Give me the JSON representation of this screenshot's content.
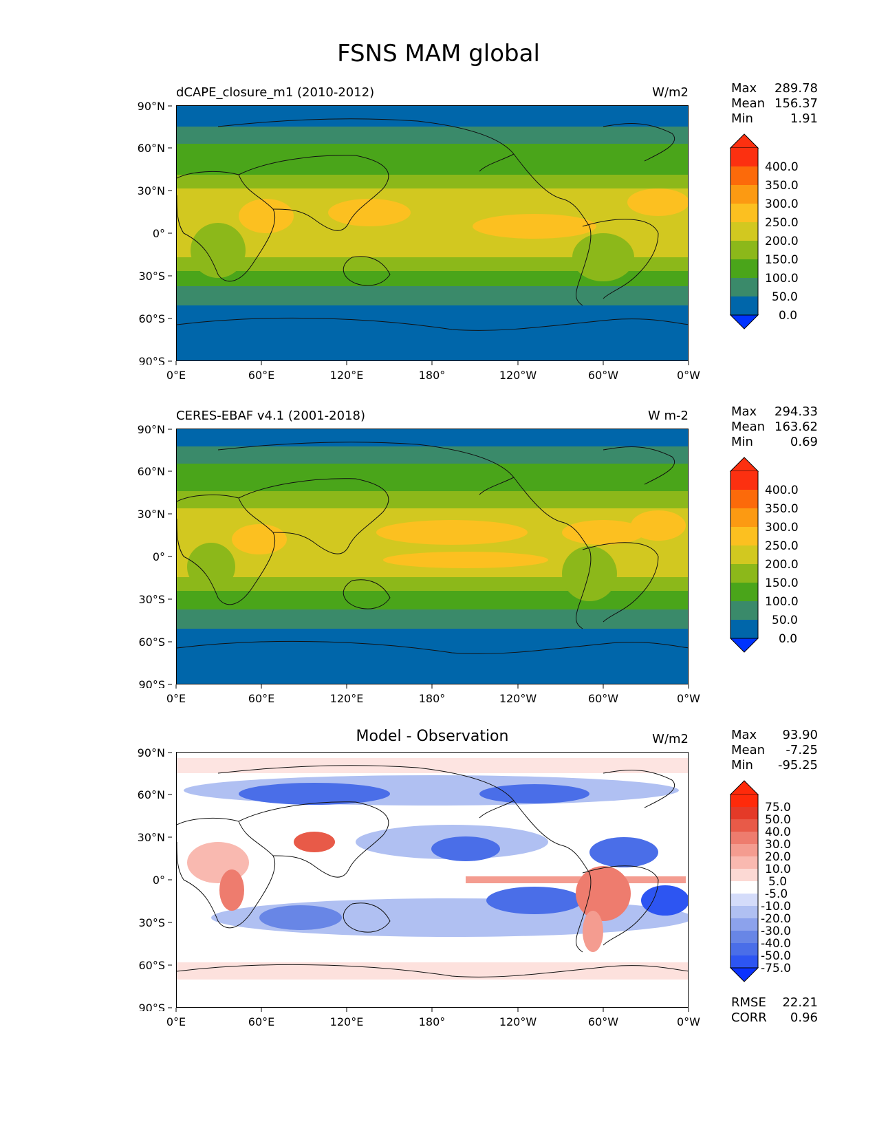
{
  "figure": {
    "title": "FSNS MAM global"
  },
  "axes": {
    "lat_ticks": [
      "90°N",
      "60°N",
      "30°N",
      "0°",
      "30°S",
      "60°S",
      "90°S"
    ],
    "lon_ticks": [
      "0°E",
      "60°E",
      "120°E",
      "180°",
      "120°W",
      "60°W",
      "0°W"
    ]
  },
  "colors": {
    "abs_levels": [
      "#0033ff",
      "#0066aa",
      "#3a8a6a",
      "#4aa51a",
      "#8cb81a",
      "#d2c820",
      "#fcc020",
      "#fc9a12",
      "#fc6a0a",
      "#fc3010"
    ],
    "diff_levels": [
      "#0a32ff",
      "#2d55f2",
      "#4a6ee8",
      "#6886e6",
      "#8ca2ec",
      "#b0c0f2",
      "#d4dcfa",
      "#ffffff",
      "#fcd9d4",
      "#f9b9b0",
      "#f49c90",
      "#ee7c6e",
      "#e85a48",
      "#e43a28",
      "#ff2a0a"
    ]
  },
  "chart_data": [
    {
      "type": "heatmap",
      "title": "dCAPE_closure_m1 (2010-2012)",
      "units": "W/m2",
      "stats": {
        "max": "289.78",
        "mean": "156.37",
        "min": "1.91"
      },
      "stat_labels": {
        "max": "Max",
        "mean": "Mean",
        "min": "Min"
      },
      "colorbar_ticks": [
        "0.0",
        "50.0",
        "100.0",
        "150.0",
        "200.0",
        "250.0",
        "300.0",
        "350.0",
        "400.0"
      ],
      "xlim": [
        0,
        360
      ],
      "ylim": [
        -90,
        90
      ]
    },
    {
      "type": "heatmap",
      "title": "CERES-EBAF v4.1 (2001-2018)",
      "units": "W m-2",
      "stats": {
        "max": "294.33",
        "mean": "163.62",
        "min": "0.69"
      },
      "stat_labels": {
        "max": "Max",
        "mean": "Mean",
        "min": "Min"
      },
      "colorbar_ticks": [
        "0.0",
        "50.0",
        "100.0",
        "150.0",
        "200.0",
        "250.0",
        "300.0",
        "350.0",
        "400.0"
      ],
      "xlim": [
        0,
        360
      ],
      "ylim": [
        -90,
        90
      ]
    },
    {
      "type": "heatmap",
      "title": "Model - Observation",
      "units": "W/m2",
      "stats": {
        "max": "93.90",
        "mean": "-7.25",
        "min": "-95.25",
        "rmse": "22.21",
        "corr": "0.96"
      },
      "stat_labels": {
        "max": "Max",
        "mean": "Mean",
        "min": "Min",
        "rmse": "RMSE",
        "corr": "CORR"
      },
      "colorbar_ticks": [
        "-75.0",
        "-50.0",
        "-40.0",
        "-30.0",
        "-20.0",
        "-10.0",
        "-5.0",
        "5.0",
        "10.0",
        "20.0",
        "30.0",
        "40.0",
        "50.0",
        "75.0"
      ],
      "xlim": [
        0,
        360
      ],
      "ylim": [
        -90,
        90
      ]
    }
  ]
}
